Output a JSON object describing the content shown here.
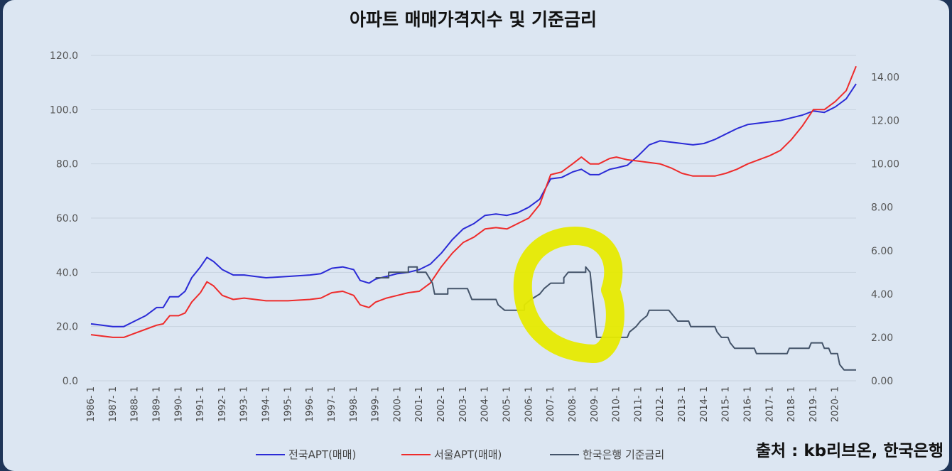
{
  "chart_data": {
    "type": "line",
    "title": "아파트 매매가격지수 및 기준금리",
    "x_tick_labels": [
      "1986- 1",
      "1987- 1",
      "1988- 1",
      "1989- 1",
      "1990- 1",
      "1991- 1",
      "1992- 1",
      "1993- 1",
      "1994- 1",
      "1995- 1",
      "1996- 1",
      "1997- 1",
      "1998- 1",
      "1999- 1",
      "2000- 1",
      "2001- 1",
      "2002- 1",
      "2003- 1",
      "2004- 1",
      "2005- 1",
      "2006- 1",
      "2007- 1",
      "2008- 1",
      "2009- 1",
      "2010- 1",
      "2011- 1",
      "2012- 1",
      "2013- 1",
      "2014- 1",
      "2015- 1",
      "2016- 1",
      "2017- 1",
      "2018- 1",
      "2019- 1",
      "2020- 1"
    ],
    "xlim": [
      1986.0,
      2020.95
    ],
    "y_left": {
      "range": [
        0,
        120
      ],
      "ticks": [
        "0.0",
        "20.0",
        "40.0",
        "60.0",
        "80.0",
        "100.0",
        "120.0"
      ]
    },
    "y_right": {
      "range": [
        0,
        15
      ],
      "ticks": [
        "0.00",
        "2.00",
        "4.00",
        "6.00",
        "8.00",
        "10.00",
        "12.00",
        "14.00"
      ]
    },
    "grid": true,
    "legend_position": "bottom",
    "colors": {
      "national": "#2b2bd6",
      "seoul": "#ee2b2b",
      "rate": "#44546a",
      "highlight": "#e6ea00"
    },
    "series": [
      {
        "name": "전국APT(매매)",
        "axis": "left",
        "points": [
          [
            1986.0,
            21
          ],
          [
            1986.5,
            20.5
          ],
          [
            1987.0,
            20
          ],
          [
            1987.5,
            20
          ],
          [
            1988.0,
            22
          ],
          [
            1988.5,
            24
          ],
          [
            1989.0,
            27
          ],
          [
            1989.3,
            27
          ],
          [
            1989.6,
            31
          ],
          [
            1990.0,
            31
          ],
          [
            1990.3,
            33
          ],
          [
            1990.6,
            38
          ],
          [
            1991.0,
            42
          ],
          [
            1991.3,
            45.5
          ],
          [
            1991.6,
            44
          ],
          [
            1992.0,
            41
          ],
          [
            1992.5,
            39
          ],
          [
            1993.0,
            39
          ],
          [
            1993.5,
            38.5
          ],
          [
            1994.0,
            38
          ],
          [
            1995.0,
            38.5
          ],
          [
            1996.0,
            39
          ],
          [
            1996.5,
            39.5
          ],
          [
            1997.0,
            41.5
          ],
          [
            1997.5,
            42
          ],
          [
            1998.0,
            41
          ],
          [
            1998.3,
            37
          ],
          [
            1998.7,
            36
          ],
          [
            1999.0,
            37.5
          ],
          [
            1999.5,
            38.5
          ],
          [
            2000.0,
            39.5
          ],
          [
            2000.5,
            40
          ],
          [
            2001.0,
            41
          ],
          [
            2001.5,
            43
          ],
          [
            2002.0,
            47
          ],
          [
            2002.5,
            52
          ],
          [
            2003.0,
            56
          ],
          [
            2003.5,
            58
          ],
          [
            2004.0,
            61
          ],
          [
            2004.5,
            61.5
          ],
          [
            2005.0,
            61
          ],
          [
            2005.5,
            62
          ],
          [
            2006.0,
            64
          ],
          [
            2006.5,
            67
          ],
          [
            2007.0,
            74.5
          ],
          [
            2007.5,
            75
          ],
          [
            2008.0,
            77
          ],
          [
            2008.4,
            78
          ],
          [
            2008.8,
            76
          ],
          [
            2009.2,
            76
          ],
          [
            2009.7,
            78
          ],
          [
            2010.0,
            78.5
          ],
          [
            2010.5,
            79.5
          ],
          [
            2011.0,
            83
          ],
          [
            2011.5,
            87
          ],
          [
            2012.0,
            88.5
          ],
          [
            2012.5,
            88
          ],
          [
            2013.0,
            87.5
          ],
          [
            2013.5,
            87
          ],
          [
            2014.0,
            87.5
          ],
          [
            2014.5,
            89
          ],
          [
            2015.0,
            91
          ],
          [
            2015.5,
            93
          ],
          [
            2016.0,
            94.5
          ],
          [
            2016.5,
            95
          ],
          [
            2017.0,
            95.5
          ],
          [
            2017.5,
            96
          ],
          [
            2018.0,
            97
          ],
          [
            2018.5,
            98
          ],
          [
            2019.0,
            99.5
          ],
          [
            2019.5,
            99
          ],
          [
            2020.0,
            101
          ],
          [
            2020.5,
            104
          ],
          [
            2020.95,
            109.5
          ]
        ]
      },
      {
        "name": "서울APT(매매)",
        "axis": "left",
        "points": [
          [
            1986.0,
            17
          ],
          [
            1986.5,
            16.5
          ],
          [
            1987.0,
            16
          ],
          [
            1987.5,
            16
          ],
          [
            1988.0,
            17.5
          ],
          [
            1988.5,
            19
          ],
          [
            1989.0,
            20.5
          ],
          [
            1989.3,
            21
          ],
          [
            1989.6,
            24
          ],
          [
            1990.0,
            24
          ],
          [
            1990.3,
            25
          ],
          [
            1990.6,
            29
          ],
          [
            1991.0,
            32.5
          ],
          [
            1991.3,
            36.5
          ],
          [
            1991.6,
            35
          ],
          [
            1992.0,
            31.5
          ],
          [
            1992.5,
            30
          ],
          [
            1993.0,
            30.5
          ],
          [
            1993.5,
            30
          ],
          [
            1994.0,
            29.5
          ],
          [
            1995.0,
            29.5
          ],
          [
            1996.0,
            30
          ],
          [
            1996.5,
            30.5
          ],
          [
            1997.0,
            32.5
          ],
          [
            1997.5,
            33
          ],
          [
            1998.0,
            31.5
          ],
          [
            1998.3,
            28
          ],
          [
            1998.7,
            27
          ],
          [
            1999.0,
            29
          ],
          [
            1999.5,
            30.5
          ],
          [
            2000.0,
            31.5
          ],
          [
            2000.5,
            32.5
          ],
          [
            2001.0,
            33
          ],
          [
            2001.5,
            36
          ],
          [
            2002.0,
            42
          ],
          [
            2002.5,
            47
          ],
          [
            2003.0,
            51
          ],
          [
            2003.5,
            53
          ],
          [
            2004.0,
            56
          ],
          [
            2004.5,
            56.5
          ],
          [
            2005.0,
            56
          ],
          [
            2005.5,
            58
          ],
          [
            2006.0,
            60
          ],
          [
            2006.5,
            65
          ],
          [
            2007.0,
            76
          ],
          [
            2007.5,
            77
          ],
          [
            2008.0,
            80
          ],
          [
            2008.4,
            82.5
          ],
          [
            2008.8,
            80
          ],
          [
            2009.2,
            80
          ],
          [
            2009.7,
            82
          ],
          [
            2010.0,
            82.5
          ],
          [
            2010.5,
            81.5
          ],
          [
            2011.0,
            81
          ],
          [
            2011.5,
            80.5
          ],
          [
            2012.0,
            80
          ],
          [
            2012.5,
            78.5
          ],
          [
            2013.0,
            76.5
          ],
          [
            2013.5,
            75.5
          ],
          [
            2014.0,
            75.5
          ],
          [
            2014.5,
            75.5
          ],
          [
            2015.0,
            76.5
          ],
          [
            2015.5,
            78
          ],
          [
            2016.0,
            80
          ],
          [
            2016.5,
            81.5
          ],
          [
            2017.0,
            83
          ],
          [
            2017.5,
            85
          ],
          [
            2018.0,
            89
          ],
          [
            2018.5,
            94
          ],
          [
            2019.0,
            100
          ],
          [
            2019.5,
            100
          ],
          [
            2020.0,
            103
          ],
          [
            2020.5,
            107
          ],
          [
            2020.95,
            116
          ]
        ]
      },
      {
        "name": "한국은행 기준금리",
        "axis": "right",
        "points": [
          [
            1999.0,
            4.75
          ],
          [
            1999.6,
            4.75
          ],
          [
            1999.6,
            5.0
          ],
          [
            2000.0,
            5.0
          ],
          [
            2000.5,
            5.0
          ],
          [
            2000.5,
            5.25
          ],
          [
            2000.9,
            5.25
          ],
          [
            2000.9,
            5.0
          ],
          [
            2001.3,
            5.0
          ],
          [
            2001.6,
            4.5
          ],
          [
            2001.7,
            4.0
          ],
          [
            2002.3,
            4.0
          ],
          [
            2002.3,
            4.25
          ],
          [
            2003.2,
            4.25
          ],
          [
            2003.4,
            3.75
          ],
          [
            2004.5,
            3.75
          ],
          [
            2004.6,
            3.5
          ],
          [
            2004.9,
            3.25
          ],
          [
            2005.8,
            3.25
          ],
          [
            2005.8,
            3.5
          ],
          [
            2006.1,
            3.75
          ],
          [
            2006.5,
            4.0
          ],
          [
            2006.7,
            4.25
          ],
          [
            2007.0,
            4.5
          ],
          [
            2007.6,
            4.5
          ],
          [
            2007.6,
            4.75
          ],
          [
            2007.8,
            5.0
          ],
          [
            2008.6,
            5.0
          ],
          [
            2008.6,
            5.25
          ],
          [
            2008.8,
            5.0
          ],
          [
            2009.0,
            3.0
          ],
          [
            2009.1,
            2.0
          ],
          [
            2010.5,
            2.0
          ],
          [
            2010.6,
            2.25
          ],
          [
            2010.9,
            2.5
          ],
          [
            2011.1,
            2.75
          ],
          [
            2011.4,
            3.0
          ],
          [
            2011.5,
            3.25
          ],
          [
            2012.4,
            3.25
          ],
          [
            2012.6,
            3.0
          ],
          [
            2012.8,
            2.75
          ],
          [
            2013.3,
            2.75
          ],
          [
            2013.4,
            2.5
          ],
          [
            2014.5,
            2.5
          ],
          [
            2014.6,
            2.25
          ],
          [
            2014.8,
            2.0
          ],
          [
            2015.1,
            2.0
          ],
          [
            2015.2,
            1.75
          ],
          [
            2015.4,
            1.5
          ],
          [
            2016.3,
            1.5
          ],
          [
            2016.4,
            1.25
          ],
          [
            2017.8,
            1.25
          ],
          [
            2017.9,
            1.5
          ],
          [
            2018.8,
            1.5
          ],
          [
            2018.9,
            1.75
          ],
          [
            2019.4,
            1.75
          ],
          [
            2019.5,
            1.5
          ],
          [
            2019.7,
            1.5
          ],
          [
            2019.8,
            1.25
          ],
          [
            2020.1,
            1.25
          ],
          [
            2020.2,
            0.75
          ],
          [
            2020.4,
            0.5
          ],
          [
            2020.95,
            0.5
          ]
        ]
      }
    ],
    "annotations": {
      "source_note": "출처 : kb리브온, 한국은행"
    }
  }
}
